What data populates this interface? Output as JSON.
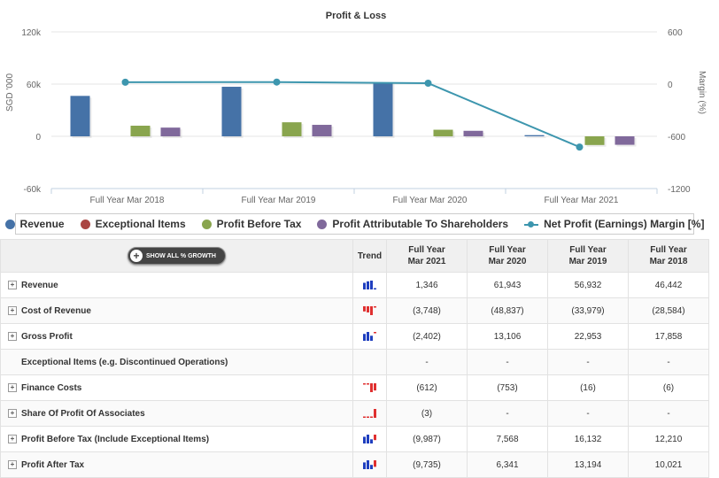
{
  "chart_data": {
    "type": "bar",
    "title": "Profit & Loss",
    "ylabel": "SGD '000",
    "y2label": "Margin (%)",
    "ylim": [
      -60000,
      120000
    ],
    "y2lim": [
      -1200,
      600
    ],
    "yticks": [
      {
        "v": 120000,
        "label": "120k"
      },
      {
        "v": 60000,
        "label": "60k"
      },
      {
        "v": 0,
        "label": "0"
      },
      {
        "v": -60000,
        "label": "-60k"
      }
    ],
    "y2ticks": [
      {
        "v": 600,
        "label": "600"
      },
      {
        "v": 0,
        "label": "0"
      },
      {
        "v": -600,
        "label": "-600"
      },
      {
        "v": -1200,
        "label": "-1200"
      }
    ],
    "categories": [
      "Full Year Mar 2018",
      "Full Year Mar 2019",
      "Full Year Mar 2020",
      "Full Year Mar 2021"
    ],
    "series": [
      {
        "name": "Revenue",
        "axis": "left",
        "color": "#4572a7",
        "values": [
          46442,
          56932,
          61943,
          1346
        ]
      },
      {
        "name": "Exceptional Items",
        "axis": "left",
        "color": "#aa4643",
        "values": [
          0,
          0,
          0,
          0
        ]
      },
      {
        "name": "Profit Before Tax",
        "axis": "left",
        "color": "#89a54e",
        "values": [
          12210,
          16132,
          7568,
          -9987
        ]
      },
      {
        "name": "Profit Attributable To Shareholders",
        "axis": "left",
        "color": "#80699b",
        "values": [
          10021,
          13194,
          6341,
          -9735
        ]
      },
      {
        "name": "Net Profit (Earnings) Margin [%]",
        "axis": "right",
        "type": "line",
        "color": "#3d96ae",
        "values": [
          21.6,
          23.2,
          10.2,
          -723.2
        ]
      }
    ],
    "legend_position": "bottom",
    "grid": true
  },
  "table": {
    "show_button_label": "SHOW ALL % GROWTH",
    "trend_header": "Trend",
    "columns": [
      {
        "line1": "Full Year",
        "line2": "Mar 2021"
      },
      {
        "line1": "Full Year",
        "line2": "Mar 2020"
      },
      {
        "line1": "Full Year",
        "line2": "Mar 2019"
      },
      {
        "line1": "Full Year",
        "line2": "Mar 2018"
      }
    ],
    "rows": [
      {
        "label": "Revenue",
        "expandable": true,
        "trend_color": "#1f3fbf",
        "trend_values": [
          46442,
          56932,
          61943,
          1346
        ],
        "values": [
          "1,346",
          "61,943",
          "56,932",
          "46,442"
        ]
      },
      {
        "label": "Cost of Revenue",
        "expandable": true,
        "trend_color": "#e03030",
        "trend_values": [
          -28584,
          -33979,
          -48837,
          -3748
        ],
        "values": [
          "(3,748)",
          "(48,837)",
          "(33,979)",
          "(28,584)"
        ]
      },
      {
        "label": "Gross Profit",
        "expandable": true,
        "trend_color": "#1f3fbf",
        "trend_values": [
          17858,
          22953,
          13106,
          -2402
        ],
        "values": [
          "(2,402)",
          "13,106",
          "22,953",
          "17,858"
        ]
      },
      {
        "label": "Exceptional Items (e.g. Discontinued Operations)",
        "expandable": false,
        "trend_color": "#1f3fbf",
        "trend_values": [],
        "values": [
          "-",
          "-",
          "-",
          "-"
        ]
      },
      {
        "label": "Finance Costs",
        "expandable": true,
        "trend_color": "#e03030",
        "trend_values": [
          -6,
          -16,
          -753,
          -612
        ],
        "values": [
          "(612)",
          "(753)",
          "(16)",
          "(6)"
        ]
      },
      {
        "label": "Share Of Profit Of Associates",
        "expandable": true,
        "trend_color": "#e03030",
        "trend_values": [
          0,
          0,
          0,
          -3
        ],
        "values": [
          "(3)",
          "-",
          "-",
          "-"
        ]
      },
      {
        "label": "Profit Before Tax (Include Exceptional Items)",
        "expandable": true,
        "trend_color": "#1f3fbf",
        "trend_values": [
          12210,
          16132,
          7568,
          -9987
        ],
        "values": [
          "(9,987)",
          "7,568",
          "16,132",
          "12,210"
        ]
      },
      {
        "label": "Profit After Tax",
        "expandable": true,
        "trend_color": "#1f3fbf",
        "trend_values": [
          10021,
          13194,
          6341,
          -9735
        ],
        "values": [
          "(9,735)",
          "6,341",
          "13,194",
          "10,021"
        ]
      }
    ]
  }
}
